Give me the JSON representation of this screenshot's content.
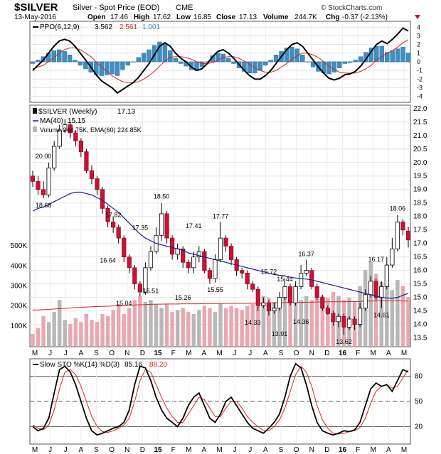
{
  "header": {
    "symbol": "$SILVER",
    "name": "Silver - Spot Price (EOD)",
    "exchange": "CME",
    "date": "13-May-2016",
    "open_label": "Open",
    "open": "17.46",
    "high_label": "High",
    "high": "17.62",
    "low_label": "Low",
    "low": "16.85",
    "close_label": "Close",
    "close": "17.13",
    "volume_label": "Volume",
    "volume": "244.7K",
    "chg_label": "Chg",
    "chg": "-0.37 (-2.13%)",
    "copyright": "© StockCharts.com"
  },
  "colors": {
    "up": "#ffffff",
    "down": "#cc1133",
    "ma": "#1a1a99",
    "ppo": "#000000",
    "signal": "#dd2222",
    "hist": "#3d8fc4",
    "vol_up": "#b8b8b8",
    "vol_down": "#e8a8b0"
  },
  "chart_data": [
    {
      "type": "line",
      "panel": "ppo",
      "legend_prefix": "PPO(6,12,9)",
      "ppo_last": "3.562",
      "signal_last": "2.561",
      "hist_last": "1.001",
      "ylim": [
        -4.6,
        4.6
      ],
      "y_ticks": [
        "4",
        "3",
        "2",
        "1",
        "0",
        "-1",
        "-2",
        "-3",
        "-4"
      ],
      "ppo": [
        -1.0,
        -0.4,
        0.2,
        1.0,
        1.8,
        2.4,
        2.6,
        2.4,
        1.8,
        1.0,
        0.2,
        -0.6,
        -1.5,
        -2.2,
        -2.6,
        -3.0,
        -3.6,
        -3.2,
        -2.8,
        -2.4,
        -1.8,
        -1.0,
        -0.2,
        0.8,
        1.8,
        2.2,
        1.8,
        1.0,
        0.4,
        0.0,
        -0.6,
        -1.0,
        -0.8,
        -0.2,
        0.6,
        1.2,
        1.4,
        1.0,
        0.4,
        -0.3,
        -1.0,
        -1.6,
        -2.0,
        -2.0,
        -1.6,
        -1.0,
        -0.2,
        0.6,
        1.4,
        2.0,
        2.2,
        1.8,
        1.0,
        0.2,
        -0.6,
        -1.3,
        -1.9,
        -2.1,
        -1.9,
        -1.5,
        -1.4,
        -1.1,
        -0.5,
        0.3,
        1.2,
        2.0,
        2.4,
        2.1,
        2.6,
        3.2,
        3.9,
        3.56
      ],
      "signal": [
        -0.8,
        -0.6,
        -0.4,
        0.0,
        0.5,
        1.0,
        1.4,
        1.6,
        1.6,
        1.4,
        1.0,
        0.6,
        0.0,
        -0.6,
        -1.1,
        -1.6,
        -2.0,
        -2.3,
        -2.4,
        -2.4,
        -2.3,
        -2.0,
        -1.6,
        -1.1,
        -0.5,
        0.1,
        0.5,
        0.6,
        0.6,
        0.5,
        0.3,
        0.0,
        -0.2,
        -0.2,
        -0.1,
        0.2,
        0.5,
        0.6,
        0.6,
        0.4,
        0.1,
        -0.3,
        -0.7,
        -1.0,
        -1.2,
        -1.2,
        -1.0,
        -0.6,
        -0.2,
        0.3,
        0.7,
        1.0,
        1.0,
        0.8,
        0.5,
        0.0,
        -0.5,
        -0.9,
        -1.2,
        -1.3,
        -1.3,
        -1.3,
        -1.1,
        -0.8,
        -0.4,
        0.2,
        0.6,
        1.0,
        1.3,
        1.7,
        2.2,
        2.56
      ]
    },
    {
      "type": "candlestick",
      "panel": "price",
      "legend_series": "$SILVER (Weekly)",
      "legend_series_value": "17.13",
      "legend_ma": "MA(40)",
      "legend_ma_value": "15.15",
      "legend_volume": "Volume 244.75K, EMA(60) 224.85K",
      "ylim": [
        13.2,
        22.1
      ],
      "y_ticks": [
        "22.0",
        "21.5",
        "21.0",
        "20.5",
        "20.0",
        "19.5",
        "19.0",
        "18.5",
        "18.0",
        "17.5",
        "17.0",
        "16.5",
        "16.0",
        "15.5",
        "15.0",
        "14.5",
        "14.0",
        "13.5"
      ],
      "volume_ylim": [
        0,
        1200
      ],
      "volume_ticks": [
        "500K",
        "400K",
        "300K",
        "200K",
        "100K"
      ],
      "x_labels": [
        "M",
        "J",
        "J",
        "A",
        "S",
        "O",
        "N",
        "D",
        "15",
        "F",
        "M",
        "A",
        "M",
        "J",
        "J",
        "A",
        "S",
        "O",
        "N",
        "D",
        "16",
        "F",
        "M",
        "A",
        "M"
      ],
      "close": [
        19.3,
        19.0,
        18.8,
        19.8,
        20.6,
        21.2,
        21.4,
        21.1,
        20.8,
        20.4,
        19.7,
        19.4,
        19.0,
        18.3,
        17.8,
        17.6,
        17.2,
        16.5,
        16.1,
        15.5,
        15.2,
        16.1,
        16.7,
        17.3,
        18.1,
        17.2,
        16.6,
        16.8,
        16.3,
        16.1,
        16.5,
        16.7,
        16.0,
        15.7,
        16.4,
        17.2,
        16.9,
        16.4,
        16.0,
        15.9,
        15.5,
        15.3,
        14.7,
        14.8,
        14.5,
        14.6,
        15.0,
        15.4,
        14.8,
        15.4,
        15.9,
        16.0,
        15.4,
        15.0,
        14.6,
        14.4,
        14.1,
        14.3,
        13.9,
        14.2,
        14.0,
        14.6,
        15.1,
        15.6,
        15.0,
        15.4,
        16.2,
        16.8,
        17.8,
        17.5,
        17.13
      ],
      "open": [
        19.5,
        19.3,
        19.0,
        18.8,
        19.8,
        20.6,
        21.2,
        21.4,
        21.1,
        20.8,
        20.4,
        19.7,
        19.4,
        19.0,
        18.3,
        17.8,
        17.6,
        17.2,
        16.5,
        16.1,
        15.5,
        15.2,
        16.1,
        16.7,
        17.3,
        18.1,
        17.2,
        16.6,
        16.8,
        16.3,
        16.1,
        16.5,
        16.7,
        16.0,
        15.7,
        16.4,
        17.2,
        16.9,
        16.4,
        16.0,
        15.9,
        15.5,
        15.3,
        14.7,
        14.8,
        14.5,
        14.6,
        15.0,
        15.4,
        14.8,
        15.4,
        15.9,
        16.0,
        15.4,
        15.0,
        14.6,
        14.4,
        14.1,
        14.3,
        13.9,
        14.2,
        14.0,
        14.6,
        15.1,
        15.6,
        15.0,
        15.4,
        16.2,
        16.8,
        17.8,
        17.46
      ],
      "high": [
        19.7,
        19.5,
        19.3,
        20.0,
        20.8,
        21.4,
        21.6,
        21.5,
        21.2,
        20.9,
        20.5,
        19.9,
        19.5,
        19.1,
        18.4,
        18.0,
        17.7,
        17.3,
        16.6,
        16.2,
        15.6,
        16.3,
        16.9,
        17.6,
        18.5,
        18.2,
        17.3,
        17.0,
        16.9,
        16.4,
        16.7,
        16.9,
        16.8,
        16.1,
        16.6,
        17.8,
        17.3,
        17.0,
        16.5,
        16.1,
        16.0,
        15.6,
        15.4,
        15.0,
        14.9,
        14.8,
        15.2,
        15.7,
        15.5,
        15.6,
        16.2,
        16.4,
        16.1,
        15.5,
        15.1,
        14.7,
        14.5,
        14.4,
        14.4,
        14.3,
        14.3,
        14.8,
        15.3,
        15.8,
        15.7,
        15.6,
        16.5,
        17.2,
        18.06,
        17.9,
        17.62
      ],
      "low": [
        19.1,
        18.8,
        18.68,
        18.7,
        19.7,
        20.5,
        21.1,
        20.9,
        20.6,
        20.2,
        19.6,
        19.2,
        18.8,
        18.1,
        17.6,
        17.4,
        17.0,
        16.3,
        15.9,
        15.3,
        15.04,
        15.1,
        16.0,
        16.6,
        17.1,
        17.0,
        16.4,
        16.4,
        16.1,
        15.9,
        15.9,
        16.3,
        15.9,
        15.5,
        15.55,
        16.3,
        16.7,
        16.2,
        15.8,
        15.7,
        15.3,
        15.2,
        14.5,
        14.6,
        14.33,
        14.4,
        14.5,
        14.9,
        14.7,
        14.7,
        15.3,
        15.8,
        15.3,
        14.9,
        14.5,
        14.36,
        13.95,
        13.9,
        13.62,
        13.8,
        13.8,
        13.9,
        14.5,
        15.0,
        14.9,
        14.61,
        15.3,
        16.1,
        16.7,
        17.3,
        16.85
      ],
      "ma": [
        18.2,
        18.3,
        18.35,
        18.45,
        18.55,
        18.65,
        18.75,
        18.85,
        18.9,
        18.9,
        18.85,
        18.8,
        18.7,
        18.6,
        18.45,
        18.3,
        18.15,
        17.95,
        17.75,
        17.55,
        17.35,
        17.2,
        17.1,
        17.0,
        16.95,
        16.9,
        16.85,
        16.8,
        16.75,
        16.65,
        16.6,
        16.55,
        16.5,
        16.45,
        16.4,
        16.35,
        16.3,
        16.25,
        16.2,
        16.15,
        16.1,
        16.05,
        16.0,
        15.95,
        15.9,
        15.85,
        15.82,
        15.8,
        15.75,
        15.72,
        15.7,
        15.68,
        15.65,
        15.6,
        15.55,
        15.5,
        15.45,
        15.4,
        15.35,
        15.3,
        15.25,
        15.2,
        15.15,
        15.1,
        15.05,
        15.0,
        14.98,
        14.97,
        15.0,
        15.08,
        15.15
      ],
      "volume": [
        60,
        90,
        150,
        120,
        170,
        230,
        130,
        110,
        140,
        120,
        160,
        130,
        120,
        160,
        150,
        180,
        210,
        160,
        190,
        230,
        250,
        220,
        230,
        210,
        190,
        210,
        170,
        180,
        190,
        170,
        160,
        180,
        200,
        190,
        170,
        210,
        190,
        200,
        190,
        180,
        200,
        210,
        230,
        250,
        240,
        220,
        230,
        260,
        240,
        260,
        230,
        250,
        230,
        240,
        250,
        240,
        270,
        250,
        230,
        240,
        220,
        300,
        380,
        420,
        360,
        320,
        300,
        280,
        330,
        300,
        245
      ],
      "volume_ema": [
        180,
        180,
        182,
        183,
        185,
        187,
        188,
        190,
        192,
        193,
        195,
        196,
        197,
        198,
        199,
        200,
        201,
        202,
        203,
        205,
        206,
        207,
        208,
        209,
        209,
        210,
        210,
        210,
        211,
        211,
        211,
        211,
        212,
        212,
        212,
        212,
        213,
        213,
        213,
        213,
        213,
        214,
        214,
        215,
        215,
        216,
        216,
        217,
        217,
        218,
        218,
        219,
        219,
        220,
        220,
        221,
        221,
        221,
        221,
        222,
        222,
        223,
        224,
        225,
        225,
        226,
        226,
        226,
        226,
        225,
        225
      ],
      "price_labels": [
        {
          "text": "20.00",
          "bar": 2,
          "value": 20.0,
          "pos": "above"
        },
        {
          "text": "18.68",
          "bar": 2,
          "value": 18.68,
          "pos": "below"
        },
        {
          "text": "17.82",
          "bar": 15,
          "value": 17.82,
          "pos": "above"
        },
        {
          "text": "16.64",
          "bar": 14,
          "value": 16.64,
          "pos": "below"
        },
        {
          "text": "17.35",
          "bar": 20,
          "value": 17.35,
          "pos": "above"
        },
        {
          "text": "15.04",
          "bar": 17,
          "value": 15.04,
          "pos": "below"
        },
        {
          "text": "18.50",
          "bar": 24,
          "value": 18.5,
          "pos": "above"
        },
        {
          "text": "15.51",
          "bar": 22,
          "value": 15.51,
          "pos": "below"
        },
        {
          "text": "17.41",
          "bar": 30,
          "value": 17.41,
          "pos": "above"
        },
        {
          "text": "15.26",
          "bar": 28,
          "value": 15.26,
          "pos": "below"
        },
        {
          "text": "17.77",
          "bar": 35,
          "value": 17.77,
          "pos": "above"
        },
        {
          "text": "15.55",
          "bar": 34,
          "value": 15.55,
          "pos": "below"
        },
        {
          "text": "15.72",
          "bar": 44,
          "value": 15.72,
          "pos": "above"
        },
        {
          "text": "14.33",
          "bar": 41,
          "value": 14.33,
          "pos": "below"
        },
        {
          "text": "15.44",
          "bar": 47,
          "value": 15.44,
          "pos": "above"
        },
        {
          "text": "16.37",
          "bar": 51,
          "value": 16.37,
          "pos": "above"
        },
        {
          "text": "14.36",
          "bar": 50,
          "value": 14.36,
          "pos": "below"
        },
        {
          "text": "13.91",
          "bar": 46,
          "value": 13.91,
          "pos": "below"
        },
        {
          "text": "13.62",
          "bar": 58,
          "value": 13.62,
          "pos": "below"
        },
        {
          "text": "16.17",
          "bar": 64,
          "value": 16.17,
          "pos": "above"
        },
        {
          "text": "14.61",
          "bar": 65,
          "value": 14.61,
          "pos": "below"
        },
        {
          "text": "18.06",
          "bar": 68,
          "value": 18.06,
          "pos": "above"
        }
      ]
    },
    {
      "type": "line",
      "panel": "stochastic",
      "legend_prefix": "Slow STO %K(14) %D(3)",
      "k_last": "85.16",
      "d_last": "88.20",
      "ylim": [
        0,
        100
      ],
      "y_ticks": [
        "80",
        "50",
        "20"
      ],
      "x_labels": [
        "M",
        "J",
        "J",
        "A",
        "S",
        "O",
        "N",
        "D",
        "15",
        "F",
        "M",
        "A",
        "M",
        "J",
        "J",
        "A",
        "S",
        "O",
        "N",
        "D",
        "16",
        "F",
        "M",
        "A",
        "M"
      ],
      "k": [
        20,
        15,
        18,
        30,
        60,
        88,
        92,
        85,
        70,
        50,
        30,
        15,
        10,
        12,
        15,
        18,
        20,
        25,
        40,
        70,
        92,
        90,
        75,
        55,
        40,
        30,
        25,
        20,
        30,
        45,
        55,
        60,
        45,
        30,
        25,
        35,
        50,
        55,
        45,
        35,
        25,
        18,
        15,
        12,
        18,
        25,
        35,
        55,
        80,
        95,
        90,
        70,
        45,
        25,
        15,
        12,
        10,
        12,
        15,
        14,
        16,
        25,
        45,
        65,
        72,
        68,
        70,
        62,
        75,
        88,
        85
      ],
      "d": [
        22,
        18,
        16,
        22,
        40,
        65,
        85,
        88,
        82,
        68,
        50,
        32,
        20,
        14,
        13,
        15,
        18,
        22,
        30,
        50,
        75,
        88,
        85,
        70,
        55,
        42,
        32,
        25,
        25,
        35,
        45,
        55,
        52,
        42,
        32,
        32,
        42,
        50,
        50,
        42,
        32,
        25,
        20,
        15,
        15,
        20,
        28,
        42,
        62,
        82,
        92,
        85,
        68,
        45,
        28,
        18,
        12,
        11,
        12,
        14,
        15,
        19,
        30,
        48,
        62,
        68,
        70,
        66,
        68,
        78,
        88
      ]
    }
  ]
}
